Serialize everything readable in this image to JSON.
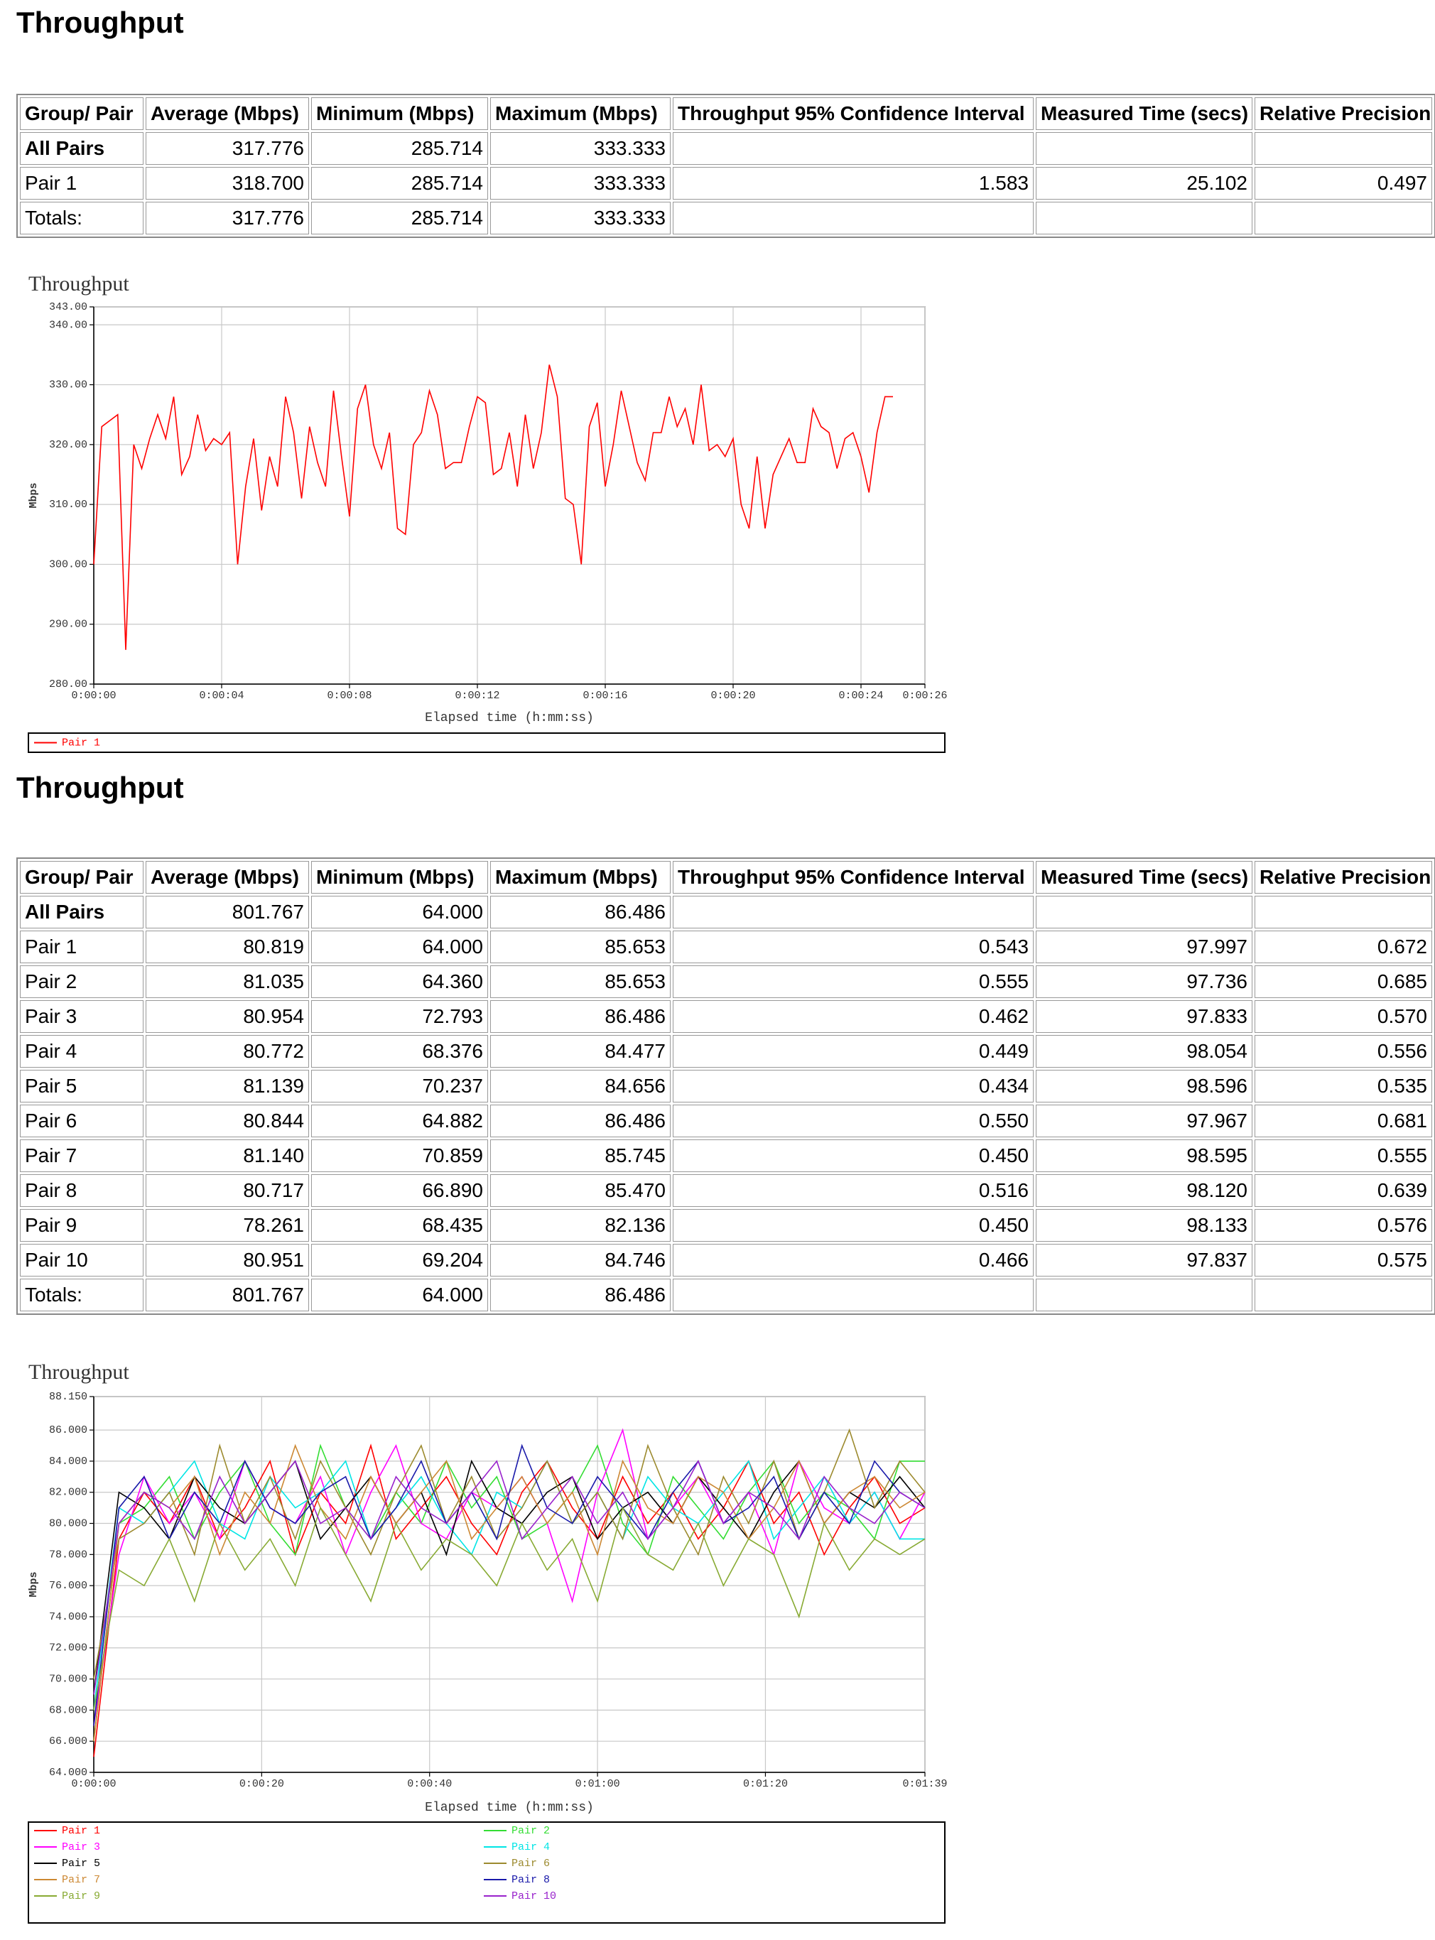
{
  "sections": [
    {
      "title": "Throughput",
      "table": {
        "header": [
          "Group/ Pair",
          "Average (Mbps)",
          "Minimum (Mbps)",
          "Maximum (Mbps)",
          "Throughput 95% Confidence Interval",
          "Measured Time (secs)",
          "Relative Precision"
        ],
        "rows": [
          [
            "All Pairs",
            "317.776",
            "285.714",
            "333.333",
            null,
            null,
            null
          ],
          [
            "Pair 1",
            "318.700",
            "285.714",
            "333.333",
            "1.583",
            "25.102",
            "0.497"
          ],
          [
            "Totals:",
            "317.776",
            "285.714",
            "333.333",
            null,
            null,
            null
          ]
        ]
      }
    },
    {
      "title": "Throughput",
      "table": {
        "header": [
          "Group/ Pair",
          "Average (Mbps)",
          "Minimum (Mbps)",
          "Maximum (Mbps)",
          "Throughput 95% Confidence Interval",
          "Measured Time (secs)",
          "Relative Precision"
        ],
        "rows": [
          [
            "All Pairs",
            "801.767",
            "64.000",
            "86.486",
            null,
            null,
            null
          ],
          [
            "Pair 1",
            "80.819",
            "64.000",
            "85.653",
            "0.543",
            "97.997",
            "0.672"
          ],
          [
            "Pair 2",
            "81.035",
            "64.360",
            "85.653",
            "0.555",
            "97.736",
            "0.685"
          ],
          [
            "Pair 3",
            "80.954",
            "72.793",
            "86.486",
            "0.462",
            "97.833",
            "0.570"
          ],
          [
            "Pair 4",
            "80.772",
            "68.376",
            "84.477",
            "0.449",
            "98.054",
            "0.556"
          ],
          [
            "Pair 5",
            "81.139",
            "70.237",
            "84.656",
            "0.434",
            "98.596",
            "0.535"
          ],
          [
            "Pair 6",
            "80.844",
            "64.882",
            "86.486",
            "0.550",
            "97.967",
            "0.681"
          ],
          [
            "Pair 7",
            "81.140",
            "70.859",
            "85.745",
            "0.450",
            "98.595",
            "0.555"
          ],
          [
            "Pair 8",
            "80.717",
            "66.890",
            "85.470",
            "0.516",
            "98.120",
            "0.639"
          ],
          [
            "Pair 9",
            "78.261",
            "68.435",
            "82.136",
            "0.450",
            "98.133",
            "0.576"
          ],
          [
            "Pair 10",
            "80.951",
            "69.204",
            "84.746",
            "0.466",
            "97.837",
            "0.575"
          ],
          [
            "Totals:",
            "801.767",
            "64.000",
            "86.486",
            null,
            null,
            null
          ]
        ]
      }
    }
  ],
  "chart_data": [
    {
      "type": "line",
      "title": "Throughput",
      "x_label": "Elapsed time (h:mm:ss)",
      "y_label": "Mbps",
      "grid": true,
      "legend": "bottom",
      "xlim": [
        0,
        26
      ],
      "ylim": [
        280,
        343
      ],
      "xticks": [
        {
          "value": 0,
          "label": "0:00:00"
        },
        {
          "value": 4,
          "label": "0:00:04"
        },
        {
          "value": 8,
          "label": "0:00:08"
        },
        {
          "value": 12,
          "label": "0:00:12"
        },
        {
          "value": 16,
          "label": "0:00:16"
        },
        {
          "value": 20,
          "label": "0:00:20"
        },
        {
          "value": 24,
          "label": "0:00:24"
        },
        {
          "value": 26,
          "label": "0:00:26"
        }
      ],
      "yticks": [
        {
          "value": 280,
          "label": "280.00"
        },
        {
          "value": 290,
          "label": "290.00"
        },
        {
          "value": 300,
          "label": "300.00"
        },
        {
          "value": 310,
          "label": "310.00"
        },
        {
          "value": 320,
          "label": "320.00"
        },
        {
          "value": 330,
          "label": "330.00"
        },
        {
          "value": 340,
          "label": "340.00"
        },
        {
          "value": 343,
          "label": "343.00"
        }
      ],
      "x": [
        0,
        0.25,
        0.5,
        0.75,
        1,
        1.25,
        1.5,
        1.75,
        2,
        2.25,
        2.5,
        2.75,
        3,
        3.25,
        3.5,
        3.75,
        4,
        4.25,
        4.5,
        4.75,
        5,
        5.25,
        5.5,
        5.75,
        6,
        6.25,
        6.5,
        6.75,
        7,
        7.25,
        7.5,
        7.75,
        8,
        8.25,
        8.5,
        8.75,
        9,
        9.25,
        9.5,
        9.75,
        10,
        10.25,
        10.5,
        10.75,
        11,
        11.25,
        11.5,
        11.75,
        12,
        12.25,
        12.5,
        12.75,
        13,
        13.25,
        13.5,
        13.75,
        14,
        14.25,
        14.5,
        14.75,
        15,
        15.25,
        15.5,
        15.75,
        16,
        16.25,
        16.5,
        16.75,
        17,
        17.25,
        17.5,
        17.75,
        18,
        18.25,
        18.5,
        18.75,
        19,
        19.25,
        19.5,
        19.75,
        20,
        20.25,
        20.5,
        20.75,
        21,
        21.25,
        21.5,
        21.75,
        22,
        22.25,
        22.5,
        22.75,
        23,
        23.25,
        23.5,
        23.75,
        24,
        24.25,
        24.5,
        24.75,
        25
      ],
      "series": [
        {
          "name": "Pair 1",
          "color": "#ff0000",
          "values": [
            300,
            323,
            324,
            325,
            285.714,
            320,
            316,
            321,
            325,
            321,
            328,
            315,
            318,
            325,
            319,
            321,
            320,
            322,
            300,
            313,
            321,
            309,
            318,
            313,
            328,
            322,
            311,
            323,
            317,
            313,
            329,
            318,
            308,
            326,
            330,
            320,
            316,
            322,
            306,
            305,
            320,
            322,
            329,
            325,
            316,
            317,
            317,
            323,
            328,
            327,
            315,
            316,
            322,
            313,
            325,
            316,
            322,
            333.333,
            328,
            311,
            310,
            300,
            323,
            327,
            313,
            320,
            329,
            323,
            317,
            314,
            322,
            322,
            328,
            323,
            326,
            320,
            330,
            319,
            320,
            318,
            321,
            310,
            306,
            318,
            306,
            315,
            318,
            321,
            317,
            317,
            326,
            323,
            322,
            316,
            321,
            322,
            318,
            312,
            322,
            328,
            328
          ]
        }
      ]
    },
    {
      "type": "line",
      "title": "Throughput",
      "x_label": "Elapsed time (h:mm:ss)",
      "y_label": "Mbps",
      "grid": true,
      "legend": "bottom",
      "xlim": [
        0,
        99
      ],
      "ylim": [
        64,
        88.15
      ],
      "xticks": [
        {
          "value": 0,
          "label": "0:00:00"
        },
        {
          "value": 20,
          "label": "0:00:20"
        },
        {
          "value": 40,
          "label": "0:00:40"
        },
        {
          "value": 60,
          "label": "0:01:00"
        },
        {
          "value": 80,
          "label": "0:01:20"
        },
        {
          "value": 99,
          "label": "0:01:39"
        }
      ],
      "yticks": [
        {
          "value": 64,
          "label": "64.000"
        },
        {
          "value": 66,
          "label": "66.000"
        },
        {
          "value": 68,
          "label": "68.000"
        },
        {
          "value": 70,
          "label": "70.000"
        },
        {
          "value": 72,
          "label": "72.000"
        },
        {
          "value": 74,
          "label": "74.000"
        },
        {
          "value": 76,
          "label": "76.000"
        },
        {
          "value": 78,
          "label": "78.000"
        },
        {
          "value": 80,
          "label": "80.000"
        },
        {
          "value": 82,
          "label": "82.000"
        },
        {
          "value": 84,
          "label": "84.000"
        },
        {
          "value": 86,
          "label": "86.000"
        },
        {
          "value": 88.15,
          "label": "88.150"
        }
      ],
      "x": [
        0,
        3,
        6,
        9,
        12,
        15,
        18,
        21,
        24,
        27,
        30,
        33,
        36,
        39,
        42,
        45,
        48,
        51,
        54,
        57,
        60,
        63,
        66,
        69,
        72,
        75,
        78,
        81,
        84,
        87,
        90,
        93,
        96,
        99
      ],
      "series": [
        {
          "name": "Pair 1",
          "color": "#ff0000",
          "values": [
            65,
            79,
            82,
            80,
            83,
            79,
            81,
            84,
            78,
            82,
            80,
            85,
            79,
            81,
            83,
            80,
            78,
            82,
            84,
            81,
            79,
            83,
            80,
            82,
            79,
            81,
            84,
            80,
            82,
            78,
            81,
            83,
            80,
            81
          ]
        },
        {
          "name": "Pair 2",
          "color": "#33dd33",
          "values": [
            66,
            80,
            81,
            83,
            79,
            82,
            84,
            80,
            78,
            85,
            81,
            79,
            82,
            80,
            84,
            81,
            83,
            79,
            80,
            82,
            85,
            80,
            78,
            83,
            81,
            79,
            82,
            84,
            80,
            82,
            81,
            79,
            84,
            84
          ]
        },
        {
          "name": "Pair 3",
          "color": "#ff00ff",
          "values": [
            67,
            78,
            83,
            80,
            82,
            79,
            84,
            81,
            80,
            83,
            78,
            82,
            85,
            80,
            79,
            82,
            81,
            83,
            80,
            75,
            82,
            86,
            79,
            81,
            83,
            80,
            82,
            78,
            84,
            81,
            80,
            82,
            79,
            82
          ]
        },
        {
          "name": "Pair 4",
          "color": "#00e5e5",
          "values": [
            68,
            81,
            80,
            82,
            84,
            80,
            79,
            83,
            81,
            82,
            84,
            79,
            81,
            83,
            80,
            78,
            82,
            81,
            84,
            80,
            82,
            79,
            83,
            81,
            80,
            82,
            84,
            79,
            81,
            83,
            80,
            82,
            79,
            79
          ]
        },
        {
          "name": "Pair 5",
          "color": "#000000",
          "values": [
            69,
            82,
            81,
            79,
            83,
            81,
            80,
            82,
            84,
            79,
            81,
            83,
            80,
            82,
            78,
            84,
            81,
            80,
            82,
            83,
            79,
            81,
            82,
            80,
            83,
            81,
            79,
            82,
            84,
            80,
            82,
            81,
            83,
            81
          ]
        },
        {
          "name": "Pair 6",
          "color": "#9c8a2e",
          "values": [
            70,
            79,
            80,
            82,
            78,
            85,
            80,
            83,
            79,
            84,
            81,
            78,
            82,
            85,
            80,
            83,
            79,
            81,
            84,
            80,
            82,
            79,
            85,
            81,
            78,
            83,
            80,
            84,
            79,
            82,
            86,
            81,
            84,
            82
          ]
        },
        {
          "name": "Pair 7",
          "color": "#cc8833",
          "values": [
            66,
            80,
            82,
            81,
            83,
            78,
            82,
            80,
            85,
            81,
            79,
            83,
            80,
            82,
            84,
            79,
            81,
            83,
            80,
            82,
            78,
            84,
            81,
            80,
            83,
            82,
            79,
            81,
            84,
            80,
            82,
            83,
            81,
            82
          ]
        },
        {
          "name": "Pair 8",
          "color": "#1a1aaa",
          "values": [
            67,
            81,
            83,
            79,
            82,
            80,
            84,
            81,
            80,
            82,
            83,
            79,
            81,
            84,
            80,
            82,
            79,
            85,
            81,
            80,
            83,
            81,
            79,
            82,
            84,
            80,
            81,
            83,
            79,
            82,
            80,
            84,
            82,
            81
          ]
        },
        {
          "name": "Pair 9",
          "color": "#88aa33",
          "values": [
            68,
            77,
            76,
            79,
            75,
            80,
            77,
            79,
            76,
            81,
            78,
            75,
            80,
            77,
            79,
            78,
            76,
            80,
            77,
            79,
            75,
            81,
            78,
            77,
            80,
            76,
            79,
            78,
            74,
            80,
            77,
            79,
            78,
            79
          ]
        },
        {
          "name": "Pair 10",
          "color": "#9922cc",
          "values": [
            69,
            80,
            82,
            81,
            79,
            83,
            80,
            82,
            84,
            80,
            81,
            79,
            83,
            81,
            80,
            82,
            84,
            79,
            81,
            83,
            80,
            82,
            79,
            81,
            84,
            80,
            82,
            81,
            79,
            83,
            81,
            80,
            82,
            81
          ]
        }
      ]
    }
  ]
}
